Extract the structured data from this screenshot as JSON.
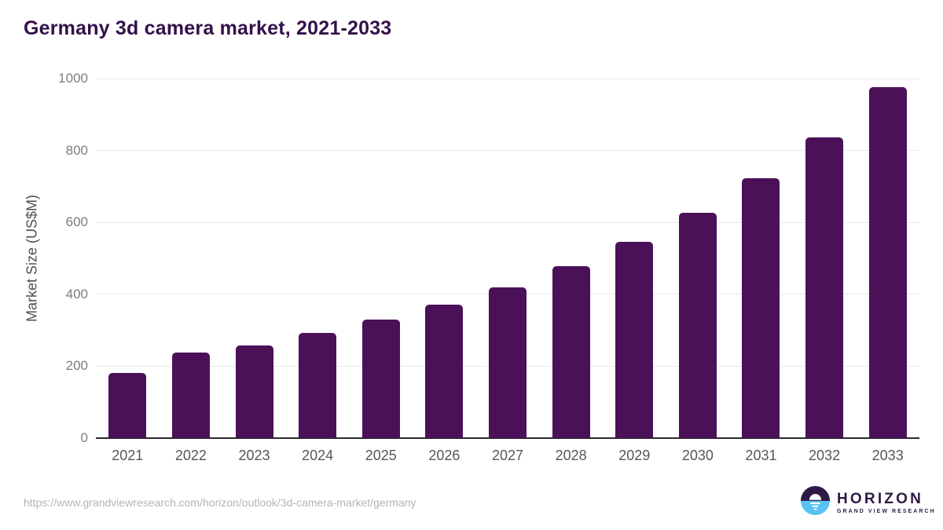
{
  "page": {
    "source_url": "https://www.grandviewresearch.com/horizon/outlook/3d-camera-market/germany"
  },
  "chart_data": {
    "type": "bar",
    "title": "Germany 3d camera market, 2021-2033",
    "ylabel": "Market Size (US$M)",
    "xlabel": "",
    "categories": [
      "2021",
      "2022",
      "2023",
      "2024",
      "2025",
      "2026",
      "2027",
      "2028",
      "2029",
      "2030",
      "2031",
      "2032",
      "2033"
    ],
    "values": [
      181,
      237,
      257,
      293,
      329,
      372,
      420,
      479,
      546,
      627,
      723,
      837,
      975
    ],
    "ylim": [
      0,
      1000
    ],
    "yticks": [
      0,
      200,
      400,
      600,
      800,
      1000
    ],
    "grid": "horizontal",
    "legend": false,
    "bar_color": "#4a1158"
  },
  "logo": {
    "brand": "HORIZON",
    "subbrand": "GRAND VIEW RESEARCH"
  },
  "colors": {
    "title": "#331149",
    "bar": "#4a1158",
    "grid": "#e8e8e8",
    "axis_line": "#2b2b2b",
    "y_tick_label": "#7d7d7d",
    "x_tick_label": "#57575a",
    "y_axis_title": "#4f4f4f",
    "source_url": "#b4b4b4",
    "logo_dark": "#2e1a47",
    "logo_blue": "#56c3f0"
  }
}
